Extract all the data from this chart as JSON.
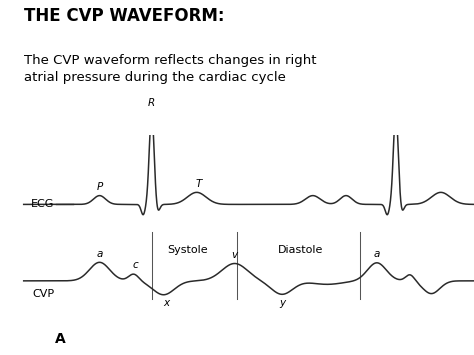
{
  "title_bold": "THE CVP WAVEFORM:",
  "subtitle": "The CVP waveform reflects changes in right\natrial pressure during the cardiac cycle",
  "bg_color": "#faf8e8",
  "white_bg": "#ffffff",
  "text_color": "#000000",
  "line_color": "#2a2a2a",
  "ecg_label": "ECG",
  "cvp_label": "CVP",
  "bottom_label": "A",
  "systole_label": "Systole",
  "diastole_label": "Diastole",
  "P_label": "P",
  "R_label": "R",
  "T_label": "T",
  "a1_label": "a",
  "c_label": "c",
  "x_label": "x",
  "v_label": "v",
  "y_label": "y",
  "a2_label": "a"
}
